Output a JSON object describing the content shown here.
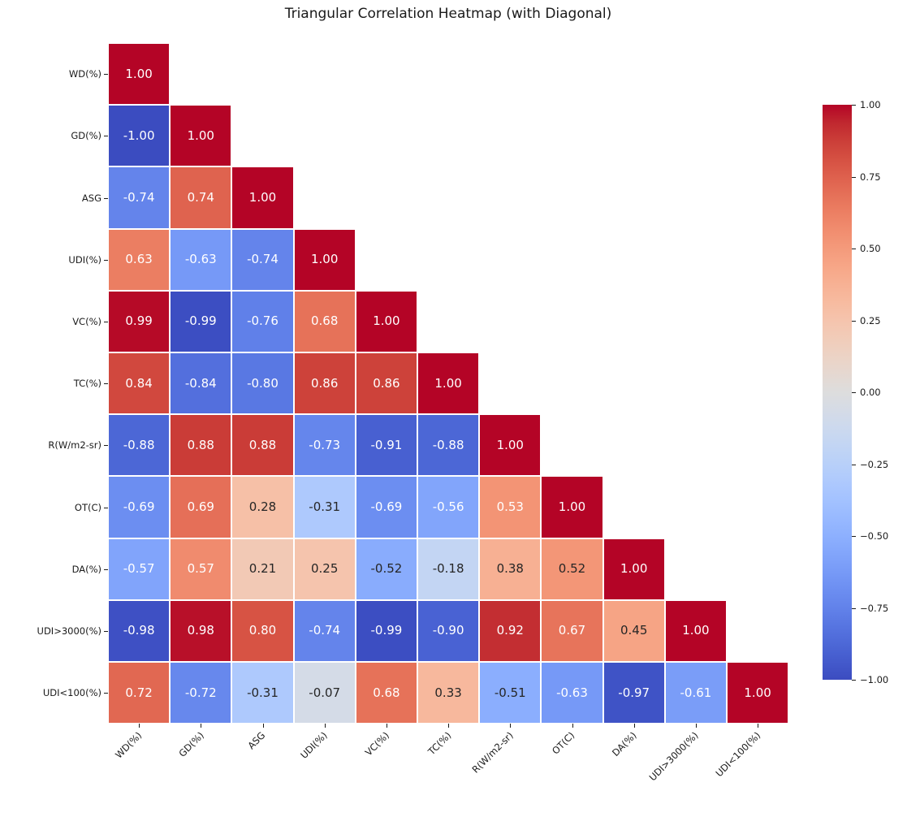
{
  "title": "Triangular Correlation Heatmap (with Diagonal)",
  "chart_data": {
    "type": "heatmap",
    "title": "Triangular Correlation Heatmap (with Diagonal)",
    "shape": "lower-triangular-with-diagonal",
    "labels": [
      "WD(%)",
      "GD(%)",
      "ASG",
      "UDI(%)",
      "VC(%)",
      "TC(%)",
      "R(W/m2-sr)",
      "OT(C)",
      "DA(%)",
      "UDI>3000(%)",
      "UDI<100(%)"
    ],
    "matrix": [
      [
        1.0
      ],
      [
        -1.0,
        1.0
      ],
      [
        -0.74,
        0.74,
        1.0
      ],
      [
        0.63,
        -0.63,
        -0.74,
        1.0
      ],
      [
        0.99,
        -0.99,
        -0.76,
        0.68,
        1.0
      ],
      [
        0.84,
        -0.84,
        -0.8,
        0.86,
        0.86,
        1.0
      ],
      [
        -0.88,
        0.88,
        0.88,
        -0.73,
        -0.91,
        -0.88,
        1.0
      ],
      [
        -0.69,
        0.69,
        0.28,
        -0.31,
        -0.69,
        -0.56,
        0.53,
        1.0
      ],
      [
        -0.57,
        0.57,
        0.21,
        0.25,
        -0.52,
        -0.18,
        0.38,
        0.52,
        1.0
      ],
      [
        -0.98,
        0.98,
        0.8,
        -0.74,
        -0.99,
        -0.9,
        0.92,
        0.67,
        0.45,
        1.0
      ],
      [
        0.72,
        -0.72,
        -0.31,
        -0.07,
        0.68,
        0.33,
        -0.51,
        -0.63,
        -0.97,
        -0.61,
        1.0
      ]
    ],
    "vmin": -1,
    "vmax": 1,
    "colormap": "coolwarm",
    "colormap_anchors": [
      "#3b4cc0",
      "#445acc",
      "#4d68d7",
      "#5775e1",
      "#6282ea",
      "#6c8ef1",
      "#779af7",
      "#82a5fb",
      "#8db0fe",
      "#98b9ff",
      "#a3c2ff",
      "#aec9fd",
      "#b8d0f9",
      "#c2d5f4",
      "#ccd9ee",
      "#d5dbe6",
      "#dddddd",
      "#e5d8d1",
      "#ecd3c5",
      "#f1ccb9",
      "#f5c4ad",
      "#f7bba0",
      "#f7b194",
      "#f7a687",
      "#f49a7b",
      "#f18d6f",
      "#ec7f63",
      "#e57058",
      "#de604d",
      "#d55042",
      "#cb3e38",
      "#c0282f",
      "#b40426"
    ],
    "colorbar_ticks": [
      {
        "value": 1.0,
        "label": "1.00"
      },
      {
        "value": 0.75,
        "label": "0.75"
      },
      {
        "value": 0.5,
        "label": "0.50"
      },
      {
        "value": 0.25,
        "label": "0.25"
      },
      {
        "value": 0.0,
        "label": "0.00"
      },
      {
        "value": -0.25,
        "label": "−0.25"
      },
      {
        "value": -0.5,
        "label": "−0.50"
      },
      {
        "value": -0.75,
        "label": "−0.75"
      },
      {
        "value": -1.0,
        "label": "−1.00"
      }
    ],
    "legend_position": "right",
    "grid": false,
    "annotation": {
      "format_decimals": 2,
      "light_text_color": "#ffffff",
      "dark_text_color": "#262626",
      "dark_text_abs_threshold": 0.525
    },
    "cell_gap_color": "#ffffff"
  }
}
